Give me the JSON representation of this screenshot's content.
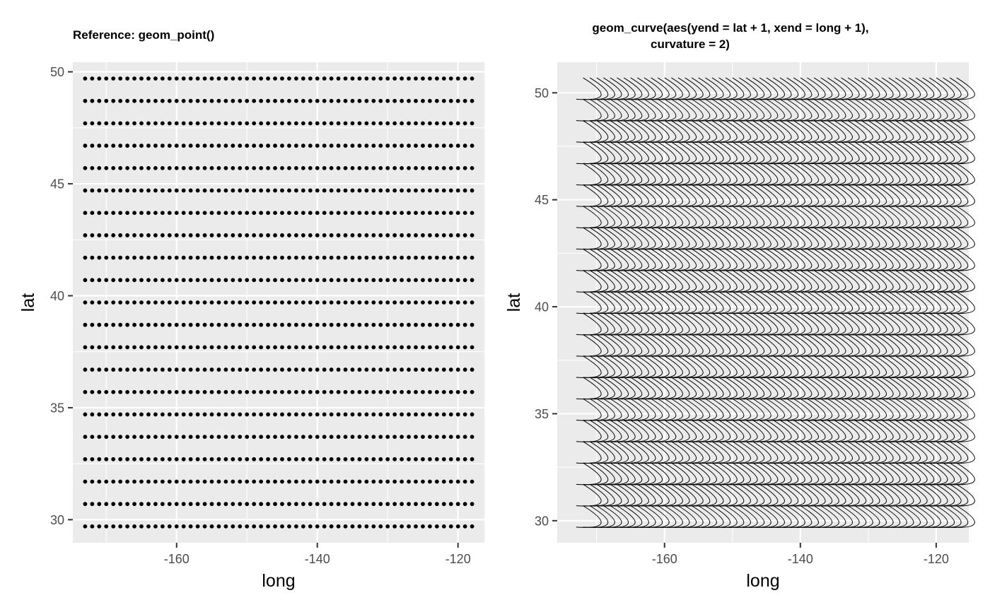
{
  "colors": {
    "panel": "#ebebeb",
    "grid": "#ffffff",
    "ink": "#000000",
    "tick_text": "#4d4d4d"
  },
  "chart_data": [
    {
      "type": "scatter",
      "title_lines": [
        "Reference: geom_point()"
      ],
      "xlabel": "long",
      "ylabel": "lat",
      "xlim": [
        -174.75,
        -116.25
      ],
      "ylim": [
        28.97,
        50.43
      ],
      "xticks": [
        -160,
        -140,
        -120
      ],
      "xtick_labels": [
        "-160",
        "-140",
        "-120"
      ],
      "yticks": [
        30,
        35,
        40,
        45,
        50
      ],
      "ytick_labels": [
        "30",
        "35",
        "40",
        "45",
        "50"
      ],
      "grid": true,
      "x_grid": {
        "start": -173,
        "step": 1,
        "count": 56
      },
      "y_grid": {
        "start": 29.7,
        "step": 1,
        "count": 21
      },
      "marker": "point"
    },
    {
      "type": "line",
      "title_lines": [
        "geom_curve(aes(yend = lat + 1, xend = long + 1),",
        "curvature = 2)"
      ],
      "xlabel": "long",
      "ylabel": "lat",
      "xlim": [
        -175.8,
        -115.2
      ],
      "ylim": [
        28.97,
        51.43
      ],
      "xticks": [
        -160,
        -140,
        -120
      ],
      "xtick_labels": [
        "-160",
        "-140",
        "-120"
      ],
      "yticks": [
        30,
        35,
        40,
        45,
        50
      ],
      "ytick_labels": [
        "30",
        "35",
        "40",
        "45",
        "50"
      ],
      "grid": true,
      "x_grid": {
        "start": -173,
        "step": 1,
        "count": 56
      },
      "y_grid": {
        "start": 29.7,
        "step": 1,
        "count": 21
      },
      "segment": {
        "dx": 1,
        "dy": 1,
        "curvature": 2
      },
      "marker": "curve"
    }
  ]
}
